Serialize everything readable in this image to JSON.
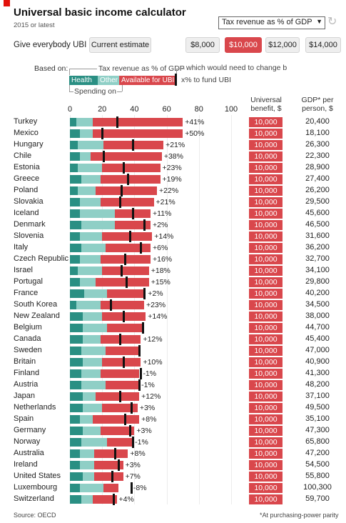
{
  "header": {
    "title": "Universal basic income calculator",
    "subtitle": "2015 or latest",
    "metric_select": "Tax revenue as % of GDP"
  },
  "controls": {
    "give_label": "Give everybody UBI of:",
    "options": [
      "Current estimate",
      "$8,000",
      "$10,000",
      "$12,000",
      "$14,000"
    ],
    "selected": "$10,000"
  },
  "legend": {
    "based_on": "Based on:",
    "tax_revenue": "Tax revenue as % of GDP",
    "change_note": "which would need to change b",
    "health": "Health",
    "other": "Other",
    "available": "Available for UBI",
    "fund_note": "x% to fund UBI",
    "spending": "Spending on"
  },
  "columns": {
    "benefit": [
      "Universal",
      "benefit, $"
    ],
    "gdp": [
      "GDP* per",
      "person, $"
    ]
  },
  "colors": {
    "health": "#2a8f83",
    "other": "#8fcfc6",
    "available": "#d9474c",
    "marker": "#111111",
    "brand": "#e3120b"
  },
  "chart_data": {
    "type": "bar",
    "stacked": true,
    "xlim": [
      0,
      100
    ],
    "x_ticks": [
      "0",
      "20",
      "40",
      "60",
      "80",
      "100"
    ],
    "series_names": [
      "Health",
      "Other",
      "Available for UBI"
    ],
    "rows": [
      {
        "country": "Turkey",
        "health": 4,
        "other": 10,
        "available": 56,
        "tax": 29,
        "change": "+41%",
        "benefit": "10,000",
        "gdp": "20,400"
      },
      {
        "country": "Mexico",
        "health": 6,
        "other": 8,
        "available": 56,
        "tax": 20,
        "change": "+50%",
        "benefit": "10,000",
        "gdp": "18,100"
      },
      {
        "country": "Hungary",
        "health": 5,
        "other": 16,
        "available": 37,
        "tax": 39,
        "change": "+21%",
        "benefit": "10,000",
        "gdp": "26,300"
      },
      {
        "country": "Chile",
        "health": 6,
        "other": 7,
        "available": 44,
        "tax": 21,
        "change": "+38%",
        "benefit": "10,000",
        "gdp": "22,300"
      },
      {
        "country": "Estonia",
        "health": 5,
        "other": 15,
        "available": 36,
        "tax": 33,
        "change": "+23%",
        "benefit": "10,000",
        "gdp": "28,900"
      },
      {
        "country": "Greece",
        "health": 7,
        "other": 12,
        "available": 37,
        "tax": 36,
        "change": "+19%",
        "benefit": "10,000",
        "gdp": "27,400"
      },
      {
        "country": "Poland",
        "health": 5,
        "other": 11,
        "available": 38,
        "tax": 32,
        "change": "+22%",
        "benefit": "10,000",
        "gdp": "26,200"
      },
      {
        "country": "Slovakia",
        "health": 6,
        "other": 13,
        "available": 33,
        "tax": 31,
        "change": "+21%",
        "benefit": "10,000",
        "gdp": "29,500"
      },
      {
        "country": "Iceland",
        "health": 6,
        "other": 22,
        "available": 22,
        "tax": 39,
        "change": "+11%",
        "benefit": "10,000",
        "gdp": "45,600"
      },
      {
        "country": "Denmark",
        "health": 7,
        "other": 21,
        "available": 22,
        "tax": 46,
        "change": "+2%",
        "benefit": "10,000",
        "gdp": "46,500"
      },
      {
        "country": "Slovenia",
        "health": 6,
        "other": 14,
        "available": 31,
        "tax": 37,
        "change": "+14%",
        "benefit": "10,000",
        "gdp": "31,600"
      },
      {
        "country": "Italy",
        "health": 7,
        "other": 15,
        "available": 28,
        "tax": 44,
        "change": "+6%",
        "benefit": "10,000",
        "gdp": "36,200"
      },
      {
        "country": "Czech Republic",
        "health": 6,
        "other": 13,
        "available": 31,
        "tax": 34,
        "change": "+16%",
        "benefit": "10,000",
        "gdp": "32,700"
      },
      {
        "country": "Israel",
        "health": 5,
        "other": 15,
        "available": 29,
        "tax": 32,
        "change": "+18%",
        "benefit": "10,000",
        "gdp": "34,100"
      },
      {
        "country": "Portugal",
        "health": 6,
        "other": 10,
        "available": 33,
        "tax": 35,
        "change": "+15%",
        "benefit": "10,000",
        "gdp": "29,800"
      },
      {
        "country": "France",
        "health": 9,
        "other": 14,
        "available": 24,
        "tax": 46,
        "change": "+2%",
        "benefit": "10,000",
        "gdp": "40,200"
      },
      {
        "country": "South Korea",
        "health": 4,
        "other": 15,
        "available": 27,
        "tax": 25,
        "change": "+23%",
        "benefit": "10,000",
        "gdp": "34,500"
      },
      {
        "country": "New Zealand",
        "health": 8,
        "other": 12,
        "available": 27,
        "tax": 33,
        "change": "+14%",
        "benefit": "10,000",
        "gdp": "38,000"
      },
      {
        "country": "Belgium",
        "health": 8,
        "other": 15,
        "available": 22,
        "tax": 45,
        "change": "",
        "benefit": "10,000",
        "gdp": "44,700"
      },
      {
        "country": "Canada",
        "health": 8,
        "other": 11,
        "available": 25,
        "tax": 31,
        "change": "+12%",
        "benefit": "10,000",
        "gdp": "45,400"
      },
      {
        "country": "Sweden",
        "health": 7,
        "other": 15,
        "available": 22,
        "tax": 43,
        "change": "",
        "benefit": "10,000",
        "gdp": "47,000"
      },
      {
        "country": "Britain",
        "health": 8,
        "other": 12,
        "available": 24,
        "tax": 33,
        "change": "+10%",
        "benefit": "10,000",
        "gdp": "40,900"
      },
      {
        "country": "Finland",
        "health": 7,
        "other": 12,
        "available": 24,
        "tax": 44,
        "change": "-1%",
        "benefit": "10,000",
        "gdp": "41,300"
      },
      {
        "country": "Austria",
        "health": 7,
        "other": 15,
        "available": 21,
        "tax": 43,
        "change": "-1%",
        "benefit": "10,000",
        "gdp": "48,200"
      },
      {
        "country": "Japan",
        "health": 8,
        "other": 8,
        "available": 27,
        "tax": 31,
        "change": "+12%",
        "benefit": "10,000",
        "gdp": "37,100"
      },
      {
        "country": "Netherlands",
        "health": 8,
        "other": 12,
        "available": 22,
        "tax": 38,
        "change": "+3%",
        "benefit": "10,000",
        "gdp": "49,500"
      },
      {
        "country": "Spain",
        "health": 6,
        "other": 8,
        "available": 29,
        "tax": 34,
        "change": "+8%",
        "benefit": "10,000",
        "gdp": "35,100"
      },
      {
        "country": "Germany",
        "health": 8,
        "other": 11,
        "available": 21,
        "tax": 37,
        "change": "+3%",
        "benefit": "10,000",
        "gdp": "47,300"
      },
      {
        "country": "Norway",
        "health": 7,
        "other": 16,
        "available": 16,
        "tax": 39,
        "change": "-1%",
        "benefit": "10,000",
        "gdp": "65,800"
      },
      {
        "country": "Australia",
        "health": 6,
        "other": 9,
        "available": 21,
        "tax": 28,
        "change": "+8%",
        "benefit": "10,000",
        "gdp": "47,200"
      },
      {
        "country": "Ireland",
        "health": 6,
        "other": 9,
        "available": 18,
        "tax": 30,
        "change": "+3%",
        "benefit": "10,000",
        "gdp": "54,500"
      },
      {
        "country": "United States",
        "health": 8,
        "other": 7,
        "available": 18,
        "tax": 26,
        "change": "+7%",
        "benefit": "10,000",
        "gdp": "55,800"
      },
      {
        "country": "Luxembourg",
        "health": 6,
        "other": 15,
        "available": 9,
        "tax": 38,
        "change": "-8%",
        "benefit": "10,000",
        "gdp": "100,300"
      },
      {
        "country": "Switzerland",
        "health": 7,
        "other": 7,
        "available": 15,
        "tax": 27,
        "change": "+4%",
        "benefit": "10,000",
        "gdp": "59,700"
      }
    ]
  },
  "footer": {
    "source": "Source: OECD",
    "note": "*At purchasing-power parity"
  }
}
